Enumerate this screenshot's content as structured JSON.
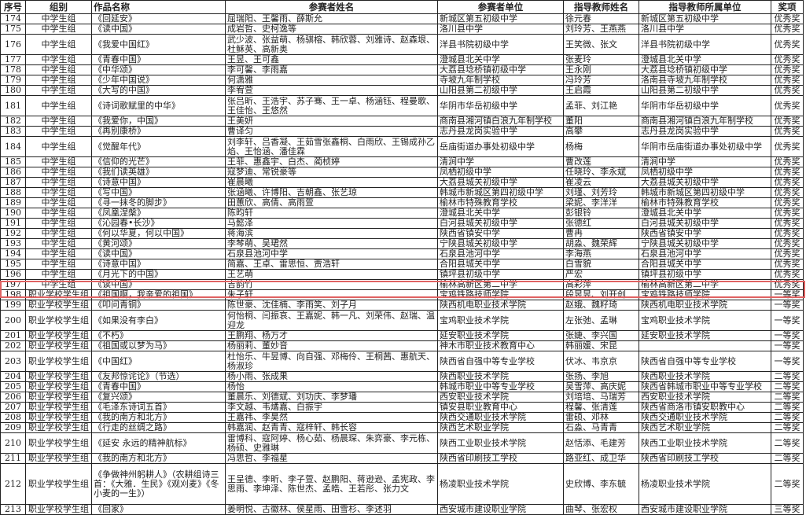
{
  "headers": [
    "序号",
    "组别",
    "作品名称",
    "参赛者姓名",
    "参赛者单位",
    "指导教师姓名",
    "指导教师所属单位",
    "奖项"
  ],
  "highlight_color": "#e06262",
  "highlighted_row": "199",
  "rows": [
    [
      "174",
      "中学生组",
      "《回延安》",
      "屈瑞阳、王馨雨、薛斯允",
      "新城区第五初级中学",
      "徐元春",
      "新城区第五初级中学",
      "优秀奖"
    ],
    [
      "175",
      "中学生组",
      "《读中国》",
      "成岩哲、史柯逸等",
      "洛川县中学",
      "刘玲芳、王燕燕",
      "洛川县中学",
      "优秀奖"
    ],
    [
      "176",
      "中学生组",
      "《我爱中国红》",
      "武少波、张益萌、杨骐榕、韩欣蓉、刘雅诗、赵森垠、杜稣英、高新奥",
      "洋县书院初级中学",
      "王笑微、张文",
      "洋县书院初级中学",
      "优秀奖"
    ],
    [
      "177",
      "中学生组",
      "《青春中国》",
      "王昱、王可鑫",
      "澄城县北关中学",
      "张麦玲",
      "澄城县北关中学",
      "优秀奖"
    ],
    [
      "178",
      "中学生组",
      "《中华颂》",
      "李可馨、李雨嘉",
      "大荔县埝桥镇初级中学",
      "王永刚",
      "大荔县埝桥镇初级中学",
      "优秀奖"
    ],
    [
      "179",
      "中学生组",
      "《少年中国说》",
      "何潇雅",
      "寺坡九年制学校",
      "冯玲芳",
      "洛南县寺坡九年制学校",
      "优秀奖"
    ],
    [
      "180",
      "中学生组",
      "《大写的中国》",
      "李宥萱",
      "山阳县第二初级中学",
      "王启霞",
      "山阳县第二初级中学",
      "优秀奖"
    ],
    [
      "181",
      "中学生组",
      "《诗词歌赋里的中华》",
      "张吕昕、王浩宇、苏子骞、王一卓、杨涵钰、程曼歌、王佳怡、王悠然",
      "华阴市华岳初级中学",
      "孟菲、刘江艳",
      "华阴市华岳初级中学",
      "优秀奖"
    ],
    [
      "182",
      "中学生组",
      "《我爱你，中国》",
      "王美妍",
      "商南县湘河镇白浪九年制学校",
      "董阳",
      "商南县湘河镇白浪九年制学校",
      "优秀奖"
    ],
    [
      "183",
      "中学生组",
      "《再别康桥》",
      "曹译匀",
      "志丹县龙岗实验中学",
      "高攀",
      "志丹县龙岗实验中学",
      "优秀奖"
    ],
    [
      "184",
      "中学生组",
      "《觉醒年代》",
      "刘李轩、吕香凝、王茹雪张鑫桐、白雨欣、王锡成孙乙焰、王怡涵、潘佳霖",
      "岳庙街道办事处初级中学",
      "杨梅",
      "华阴市岳庙街道办事处初级中学",
      "优秀奖"
    ],
    [
      "185",
      "中学生组",
      "《信仰的光芒》",
      "王菲、惠鑫宇、白杰、蔺桢婷",
      "清涧中学",
      "曹改莲",
      "清涧中学",
      "优秀奖"
    ],
    [
      "186",
      "中学生组",
      "《我们读英雄》",
      "寇梦迪、常锐豪等",
      "凤栖初级中学",
      "任晓玲、李永斌",
      "凤栖初级中学",
      "优秀奖"
    ],
    [
      "187",
      "中学生组",
      "《诗意中国》",
      "崔晨曦",
      "大荔县城关初级中学",
      "崔凌云",
      "大荔县城关初级中学",
      "优秀奖"
    ],
    [
      "188",
      "中学生组",
      "《写中国》",
      "张涵曦、许博阳、吉朝鑫、张艺琼",
      "韩城市新城区第四初级中学",
      "刘瑾、刘芳玲",
      "韩城市新城区第四初级中学",
      "优秀奖"
    ],
    [
      "189",
      "中学生组",
      "《寻一抹冬的脚步》",
      "田蕙欣、高倩、高雨萱",
      "榆林市特殊教育学校",
      "梁妮、李洋洋",
      "榆林市特殊教育学校",
      "优秀奖"
    ],
    [
      "190",
      "中学生组",
      "《凤凰涅槃》",
      "陈昀轩",
      "澄城县北关中学",
      "彭银铃",
      "澄城县北关中学",
      "优秀奖"
    ],
    [
      "191",
      "中学生组",
      "《沁园春•长沙》",
      "马懿泽",
      "白河县城关初级中学",
      "张德红",
      "白河县城关初级中学",
      "优秀奖"
    ],
    [
      "192",
      "中学生组",
      "《何以华夏，何以中国》",
      "蒋海滨",
      "陕西省镇安中学",
      "曹冉",
      "陕西省镇安中学",
      "优秀奖"
    ],
    [
      "193",
      "中学生组",
      "《黄河颂》",
      "李棽萌、吴珺然",
      "宁陕县城关初级中学",
      "胡淼、魏荣辉",
      "宁陕县城关初级中学",
      "优秀奖"
    ],
    [
      "194",
      "中学生组",
      "《读中国》",
      "石泉县池河中学",
      "石泉县池河中学",
      "李海燕",
      "石泉县池河中学",
      "优秀奖"
    ],
    [
      "195",
      "中学生组",
      "《诗意中国》",
      "简嘉、王卓、雷思恒、贾浩轩",
      "合阳县城关中学",
      "白雪貌",
      "合阳县城关中学",
      "优秀奖"
    ],
    [
      "196",
      "中学生组",
      "《月光下的中国》",
      "王艺萌",
      "镇坪县初级中学",
      "严宏",
      "镇坪县初级中学",
      "优秀奖"
    ],
    [
      "197",
      "中学生组",
      "《读中国》",
      "吉韵竹",
      "榆林高新区第二中学",
      "高彩萍",
      "榆林高新区第二中学",
      "优秀奖"
    ],
    [
      "198",
      "职业学校学生组",
      "《祖国啊，我亲爱的祖国》",
      "朱子轩",
      "宝鸡铁路技师学院",
      "段昱昱、刘开创",
      "宝鸡铁路技师学院",
      "一等奖"
    ],
    [
      "199",
      "职业学校学生组",
      "《叩问青铜》",
      "陈世豪、沈佳楠、李雨笑、刘子月",
      "陕西机电职业技术学院",
      "赵娥、魏籽琦",
      "陕西机电职业技术学院",
      "一等奖"
    ],
    [
      "200",
      "职业学校学生组",
      "《如果没有李白》",
      "何怡桐、闫振哀、王嘉妮、韩一凡、刘荣伟、赵瑞、温迎龙",
      "宝鸡职业技术学院",
      "左张弛、孟琳",
      "宝鸡职业技术学院",
      "一等奖"
    ],
    [
      "201",
      "职业学校学生组",
      "《不朽》",
      "王鹏翔、杨万才",
      "延安职业技术学院",
      "张婕、李兴国",
      "延安职业技术学院",
      "一等奖"
    ],
    [
      "202",
      "职业学校学生组",
      "《祖国或以梦为马》",
      "杨丽莉、董妙音",
      "神木市职业技术教育中心",
      "韩丽媛、宋昆",
      "",
      "一等奖"
    ],
    [
      "203",
      "职业学校学生组",
      "《中国红》",
      "杜怡乐、牛昱博、向自强、邓梅伶、王桐茜、惠航天、杨淑珍",
      "陕西省自强中等专业学校",
      "伏冰、韦京京",
      "陕西省自强中等专业学校",
      "一等奖"
    ],
    [
      "204",
      "职业学校学生组",
      "《友邦惊诧论》（节选）",
      "杨小雨、张成果",
      "陕西职业技术学院",
      "张扬、李旭",
      "陕西职业技术学院",
      "二等奖"
    ],
    [
      "205",
      "职业学校学生组",
      "《青春中国》",
      "杨怡",
      "韩城市职业中等专业学校",
      "吴雪萍、高庆妮",
      "陕西省韩城市职业中等专业学校",
      "二等奖"
    ],
    [
      "206",
      "职业学校学生组",
      "《复兴颂》",
      "董晨乐、刘德斌、刘功庆、李梦璠",
      "西安职业技术学院",
      "刘培培、马瑞芳",
      "西安职业技术学院",
      "二等奖"
    ],
    [
      "207",
      "职业学校学生组",
      "《毛泽东诗词五首》",
      "李文越、韦燏嘉、白振宇",
      "镇安县职业教育中心",
      "程馨、张清莲",
      "陕西省商洛市镇安职教中心",
      "二等奖"
    ],
    [
      "208",
      "职业学校学生组",
      "《我的南方和北方》",
      "王嘉祎、李昊然",
      "陕西交通职业技术学院",
      "雷硕、邓林",
      "陕西交通职业技术学院",
      "二等奖"
    ],
    [
      "209",
      "职业学校学生组",
      "《行走的丝绸之路》",
      "韩嘉润、赵青青、寇梓轩、韩长容",
      "陕西艺术职业学院",
      "石淼、马青青",
      "陕西艺术职业学院",
      "二等奖"
    ],
    [
      "210",
      "职业学校学生组",
      "《延安 永远的精神航标》",
      "雷博科、寇阿婷、杨心茹、杨晨琛、朱弈豪、李元栋、杨硕、史雅琳",
      "陕西工业职业技术学院",
      "赵恬添、毛建芳",
      "陕西工业职业技术学院",
      "二等奖"
    ],
    [
      "211",
      "职业学校学生组",
      "《我的南方和北方》",
      "冯思哲、李福星",
      "陕西省印刷技工学校",
      "路亚红、成卫华",
      "陕西省印刷技工学校",
      "二等奖"
    ],
    [
      "212",
      "职业学校学生组",
      "《争做神州躬耕人》（农耕组诗三首：《大雅．生民》《观刈麦》《冬小麦的一生》）",
      "王呈德、李昕、李子萱、赵鹏阳、蒋逊逊、孟宪政、李思雨、李坤泽、陈世杰、孟皓、王若彤、张力文",
      "杨凌职业技术学院",
      "史欣博、李东毓",
      "杨凌职业技术学院",
      "二等奖"
    ],
    [
      "213",
      "职业学校学生组",
      "《回家》",
      "姜明悦、古徽林、侯星雨、田雪杉、李述羽",
      "西安城市建设职业学院",
      "曲琴、张宏权",
      "西安城市建设职业学院",
      "三等奖"
    ]
  ]
}
